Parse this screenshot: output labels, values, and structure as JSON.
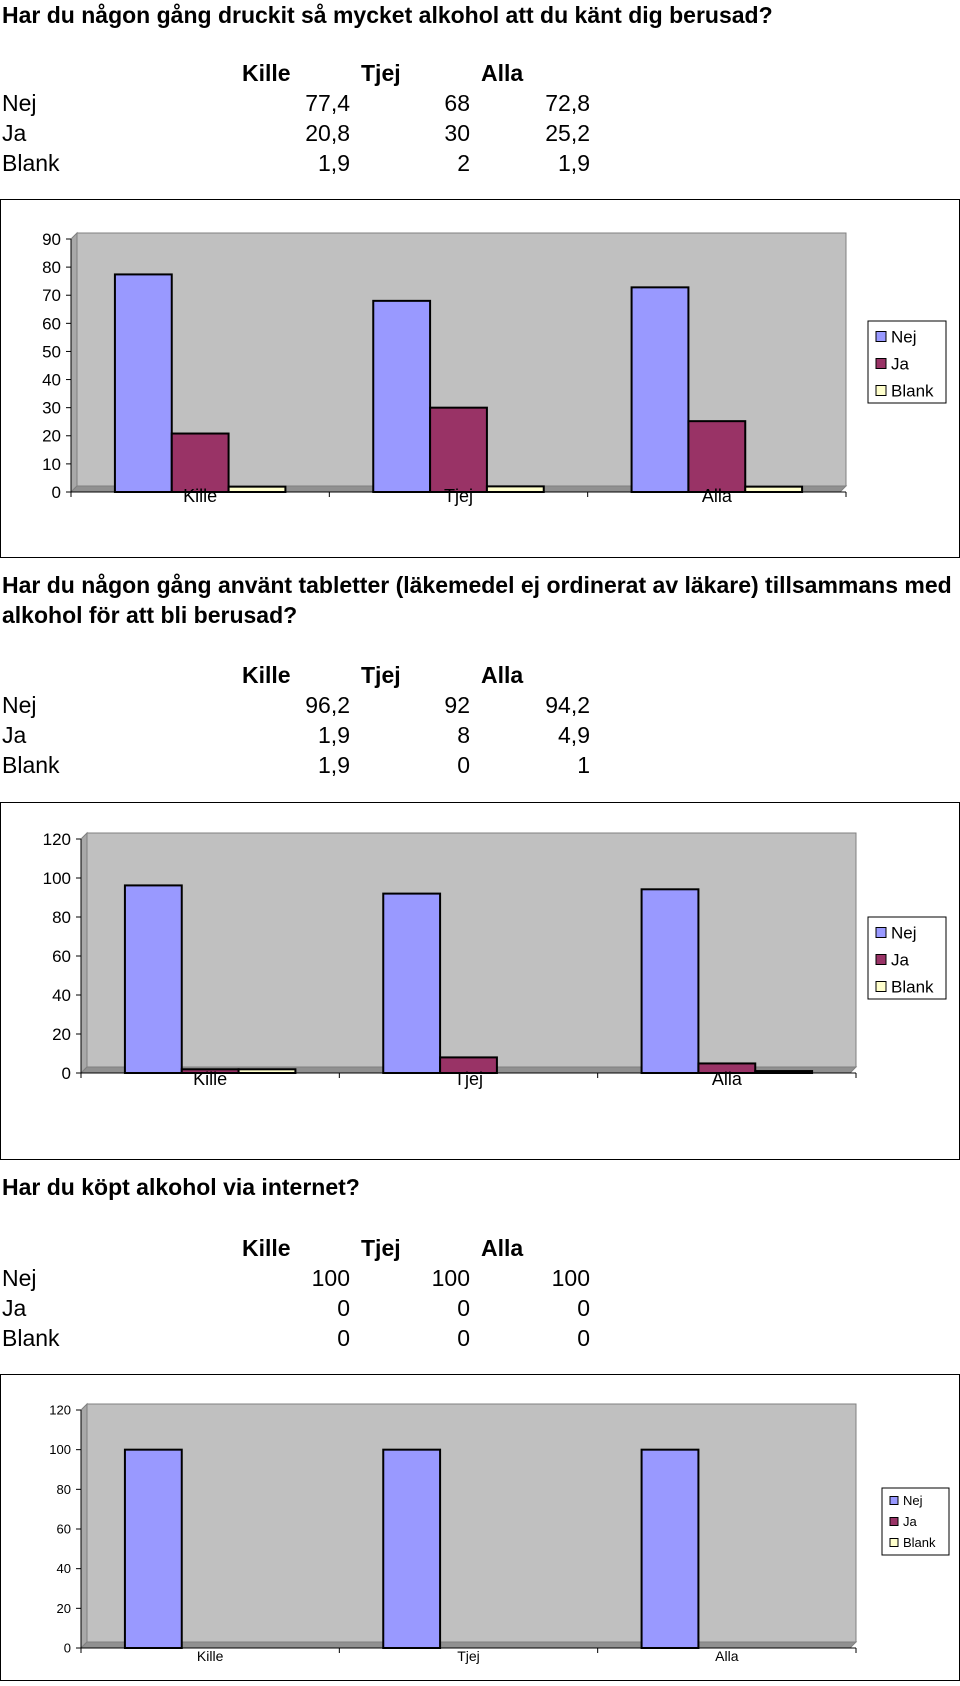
{
  "sections": [
    {
      "question": "Har du någon gång druckit så mycket alkohol att du känt dig berusad?",
      "table": {
        "headers": [
          "Kille",
          "Tjej",
          "Alla"
        ],
        "rows": [
          {
            "label": "Nej",
            "values": [
              "77,4",
              "68",
              "72,8"
            ]
          },
          {
            "label": "Ja",
            "values": [
              "20,8",
              "30",
              "25,2"
            ]
          },
          {
            "label": "Blank",
            "values": [
              "1,9",
              "2",
              "1,9"
            ]
          }
        ]
      }
    },
    {
      "question": "Har du någon gång använt tabletter (läkemedel ej ordinerat av läkare) tillsammans med alkohol för att bli berusad?",
      "table": {
        "headers": [
          "Kille",
          "Tjej",
          "Alla"
        ],
        "rows": [
          {
            "label": "Nej",
            "values": [
              "96,2",
              "92",
              "94,2"
            ]
          },
          {
            "label": "Ja",
            "values": [
              "1,9",
              "8",
              "4,9"
            ]
          },
          {
            "label": "Blank",
            "values": [
              "1,9",
              "0",
              "1"
            ]
          }
        ]
      }
    },
    {
      "question": "Har du köpt alkohol via internet?",
      "table": {
        "headers": [
          "Kille",
          "Tjej",
          "Alla"
        ],
        "rows": [
          {
            "label": "Nej",
            "values": [
              "100",
              "100",
              "100"
            ]
          },
          {
            "label": "Ja",
            "values": [
              "0",
              "0",
              "0"
            ]
          },
          {
            "label": "Blank",
            "values": [
              "0",
              "0",
              "0"
            ]
          }
        ]
      }
    }
  ],
  "colors": {
    "Nej": "#9999ff",
    "Ja": "#993366",
    "Blank": "#ffffcc",
    "plot_bg": "#c0c0c0"
  },
  "chart_data": [
    {
      "type": "bar",
      "categories": [
        "Kille",
        "Tjej",
        "Alla"
      ],
      "series": [
        {
          "name": "Nej",
          "values": [
            77.4,
            68,
            72.8
          ]
        },
        {
          "name": "Ja",
          "values": [
            20.8,
            30,
            25.2
          ]
        },
        {
          "name": "Blank",
          "values": [
            1.9,
            2,
            1.9
          ]
        }
      ],
      "yticks": [
        0,
        10,
        20,
        30,
        40,
        50,
        60,
        70,
        80,
        90
      ],
      "ylim": [
        0,
        90
      ],
      "grid": false,
      "legend": "right"
    },
    {
      "type": "bar",
      "categories": [
        "Kille",
        "Tjej",
        "Alla"
      ],
      "series": [
        {
          "name": "Nej",
          "values": [
            96.2,
            92,
            94.2
          ]
        },
        {
          "name": "Ja",
          "values": [
            1.9,
            8,
            4.9
          ]
        },
        {
          "name": "Blank",
          "values": [
            1.9,
            0,
            1
          ]
        }
      ],
      "yticks": [
        0,
        20,
        40,
        60,
        80,
        100,
        120
      ],
      "ylim": [
        0,
        120
      ],
      "grid": false,
      "legend": "right"
    },
    {
      "type": "bar",
      "categories": [
        "Kille",
        "Tjej",
        "Alla"
      ],
      "series": [
        {
          "name": "Nej",
          "values": [
            100,
            100,
            100
          ]
        },
        {
          "name": "Ja",
          "values": [
            0,
            0,
            0
          ]
        },
        {
          "name": "Blank",
          "values": [
            0,
            0,
            0
          ]
        }
      ],
      "yticks": [
        0,
        20,
        40,
        60,
        80,
        100,
        120
      ],
      "ylim": [
        0,
        120
      ],
      "grid": false,
      "legend": "right"
    }
  ]
}
